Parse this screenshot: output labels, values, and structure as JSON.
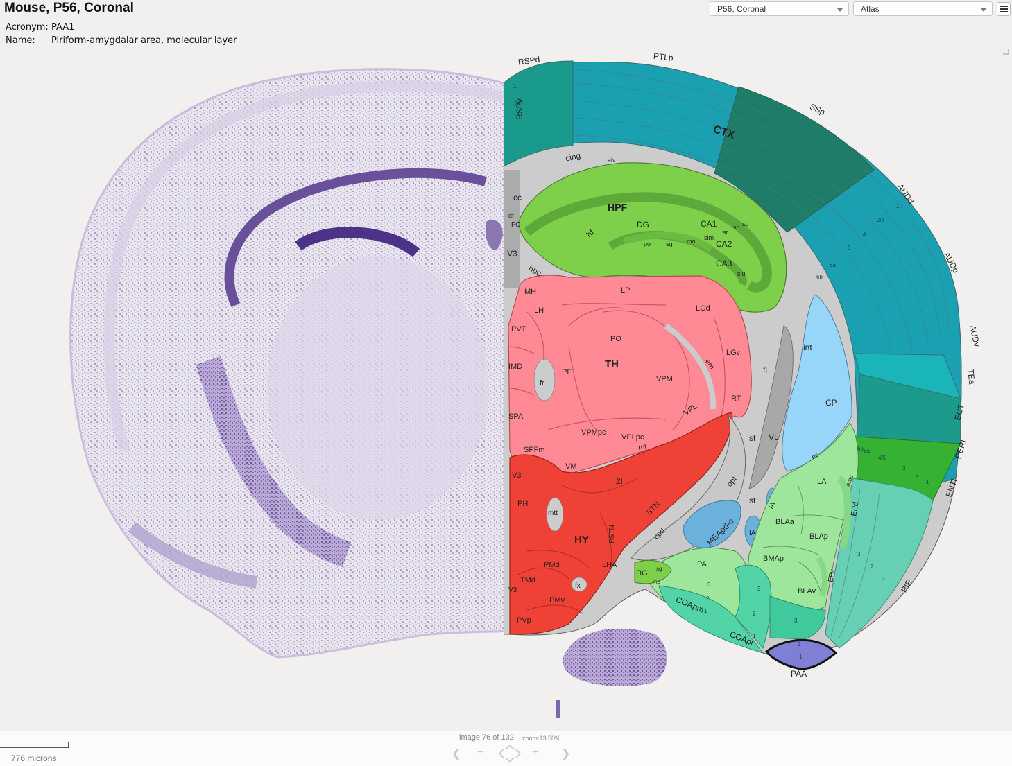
{
  "header": {
    "title": "Mouse, P56, Coronal",
    "acronym_key": "Acronym:",
    "acronym_value": "PAA1",
    "name_key": "Name:",
    "name_value": "Piriform-amygdalar area, molecular layer"
  },
  "toolbar": {
    "plate_select": "P56, Coronal",
    "view_select": "Atlas"
  },
  "footer": {
    "image_counter": "image 76 of 132",
    "zoom": "zoom:13.50%",
    "scale_label": "776 microns"
  },
  "icons": {
    "menu": "hamburger-menu-icon",
    "prev": "chevron-left-icon",
    "zoom_out": "minus-icon",
    "pan": "pan-arrows-icon",
    "zoom_in": "plus-icon",
    "next": "chevron-right-icon"
  },
  "colors": {
    "isocortex_teal": "#1fa3a8",
    "cortex_dark": "#1d7d6a",
    "hippocampus_green": "#7ed04b",
    "thalamus_pink": "#ff8a96",
    "hypothalamus_red": "#e8433b",
    "striatum_blue": "#98d6f9",
    "amygdala_green": "#9de69b",
    "olfactory_mint": "#66cfb4",
    "fiber_gray": "#cccccc",
    "selected_paa": "#7f7fd6"
  },
  "atlas_labels": {
    "big": [
      "CTX",
      "HPF",
      "TH",
      "HY"
    ],
    "cortex": [
      "RSPd",
      "PTLp",
      "SSp",
      "RSPv",
      "AUDd",
      "AUDp",
      "AUDv",
      "TEa",
      "ECT",
      "PERI",
      "ENTl",
      "PIR",
      "COApm",
      "COApl",
      "PAA"
    ],
    "layers": [
      "1",
      "2/3",
      "4",
      "5",
      "6a",
      "6b",
      "4/5",
      "3",
      "2",
      "1",
      "6a",
      "6b",
      "sg",
      "mo"
    ],
    "hippocampus": [
      "DG",
      "CA1",
      "CA2",
      "CA3",
      "po",
      "sg",
      "mo",
      "slm",
      "sr",
      "sp",
      "so",
      "slu",
      "hf",
      "alv"
    ],
    "fibers": [
      "cing",
      "cc",
      "df",
      "FC",
      "V3",
      "hbc",
      "fi",
      "int",
      "st",
      "ec",
      "amc",
      "opt",
      "cpd",
      "em",
      "ml",
      "fr",
      "mtt",
      "fx"
    ],
    "thalamus": [
      "LP",
      "LGd",
      "LGv",
      "PO",
      "VPM",
      "VPL",
      "PF",
      "RT",
      "MH",
      "LH",
      "PVT",
      "IMD",
      "SPA",
      "SPFm",
      "VPMpc",
      "VPLpc",
      "VM"
    ],
    "hypothalamus": [
      "ZI",
      "STN",
      "PH",
      "PSTN",
      "PMd",
      "TMd",
      "PMv",
      "LHA",
      "PVp",
      "V3"
    ],
    "striatum": [
      "CP",
      "VL"
    ],
    "amygdala": [
      "LA",
      "BLAa",
      "BLAp",
      "BMAp",
      "BLAv",
      "EPd",
      "EPv",
      "MEApd-c",
      "IA",
      "PA"
    ]
  }
}
